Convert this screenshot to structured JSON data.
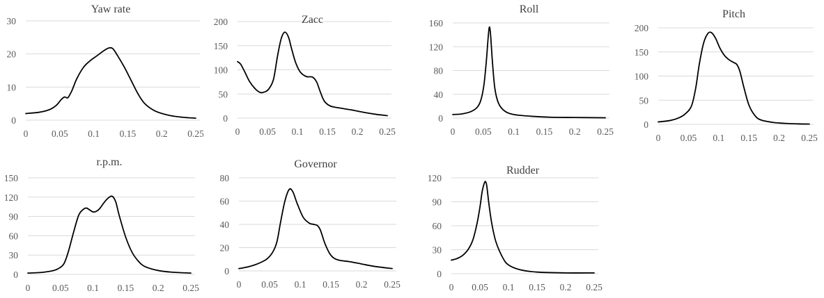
{
  "chart_data": [
    {
      "type": "line",
      "title": "Yaw rate",
      "xlim": [
        0,
        0.25
      ],
      "xticks": [
        "0",
        "0.05",
        "0.1",
        "0.15",
        "0.2",
        "0.25"
      ],
      "ylim": [
        0,
        30
      ],
      "yticks": [
        "0",
        "10",
        "20",
        "30"
      ],
      "grid": true,
      "series": [
        {
          "x": [
            0,
            0.02,
            0.035,
            0.045,
            0.052,
            0.057,
            0.062,
            0.068,
            0.075,
            0.085,
            0.095,
            0.105,
            0.115,
            0.122,
            0.128,
            0.135,
            0.145,
            0.155,
            0.165,
            0.175,
            0.19,
            0.21,
            0.23,
            0.25
          ],
          "y": [
            2,
            2.4,
            3.2,
            4.5,
            6.2,
            7,
            6.8,
            9,
            12.5,
            16,
            18,
            19.5,
            21,
            21.8,
            21.6,
            19.5,
            16,
            12,
            8,
            5,
            2.8,
            1.5,
            0.9,
            0.6
          ]
        }
      ]
    },
    {
      "type": "line",
      "title": "Zacc",
      "xlim": [
        0,
        0.25
      ],
      "xticks": [
        "0",
        "0.05",
        "0.1",
        "0.15",
        "0.2",
        "0.25"
      ],
      "ylim": [
        0,
        200
      ],
      "yticks": [
        "0",
        "50",
        "100",
        "150",
        "200"
      ],
      "grid": true,
      "series": [
        {
          "x": [
            0,
            0.005,
            0.012,
            0.02,
            0.03,
            0.038,
            0.045,
            0.052,
            0.06,
            0.067,
            0.073,
            0.079,
            0.085,
            0.09,
            0.097,
            0.105,
            0.115,
            0.125,
            0.132,
            0.138,
            0.145,
            0.155,
            0.17,
            0.19,
            0.21,
            0.23,
            0.25
          ],
          "y": [
            117,
            112,
            96,
            76,
            60,
            53,
            54,
            60,
            80,
            130,
            165,
            178,
            168,
            145,
            115,
            95,
            86,
            85,
            75,
            55,
            35,
            25,
            21,
            17,
            12,
            8,
            5
          ]
        }
      ]
    },
    {
      "type": "line",
      "title": "Roll",
      "xlim": [
        0,
        0.25
      ],
      "xticks": [
        "0",
        "0.05",
        "0.1",
        "0.15",
        "0.2",
        "0.25"
      ],
      "ylim": [
        0,
        160
      ],
      "yticks": [
        "0",
        "40",
        "80",
        "120",
        "160"
      ],
      "grid": true,
      "series": [
        {
          "x": [
            0,
            0.015,
            0.03,
            0.04,
            0.046,
            0.051,
            0.055,
            0.058,
            0.06,
            0.062,
            0.065,
            0.069,
            0.075,
            0.085,
            0.1,
            0.13,
            0.16,
            0.2,
            0.25
          ],
          "y": [
            6,
            7,
            11,
            18,
            30,
            55,
            95,
            135,
            153,
            140,
            95,
            50,
            25,
            12,
            6,
            3,
            1.5,
            1,
            0.5
          ]
        }
      ]
    },
    {
      "type": "line",
      "title": "Pitch",
      "xlim": [
        0,
        0.25
      ],
      "xticks": [
        "0",
        "0.05",
        "0.1",
        "0.15",
        "0.2",
        "0.25"
      ],
      "ylim": [
        0,
        200
      ],
      "yticks": [
        "0",
        "50",
        "100",
        "150",
        "200"
      ],
      "grid": true,
      "series": [
        {
          "x": [
            0,
            0.02,
            0.035,
            0.045,
            0.055,
            0.062,
            0.068,
            0.075,
            0.082,
            0.088,
            0.095,
            0.102,
            0.11,
            0.118,
            0.125,
            0.13,
            0.135,
            0.142,
            0.15,
            0.16,
            0.17,
            0.19,
            0.21,
            0.23,
            0.25
          ],
          "y": [
            5,
            8,
            14,
            22,
            38,
            75,
            125,
            168,
            188,
            190,
            178,
            158,
            142,
            133,
            128,
            124,
            110,
            75,
            40,
            18,
            9,
            4,
            2,
            1,
            0.5
          ]
        }
      ]
    },
    {
      "type": "line",
      "title": "r.p.m.",
      "xlim": [
        0,
        0.25
      ],
      "xticks": [
        "0",
        "0.05",
        "0.1",
        "0.15",
        "0.2",
        "0.25"
      ],
      "ylim": [
        0,
        150
      ],
      "yticks": [
        "0",
        "30",
        "60",
        "90",
        "120",
        "150"
      ],
      "grid": true,
      "series": [
        {
          "x": [
            0,
            0.02,
            0.035,
            0.045,
            0.055,
            0.062,
            0.07,
            0.078,
            0.085,
            0.09,
            0.095,
            0.1,
            0.105,
            0.11,
            0.118,
            0.125,
            0.13,
            0.135,
            0.14,
            0.15,
            0.16,
            0.17,
            0.18,
            0.2,
            0.22,
            0.25
          ],
          "y": [
            2,
            3,
            5,
            8,
            16,
            35,
            65,
            92,
            101,
            103,
            100,
            97,
            98,
            102,
            113,
            120,
            121,
            112,
            92,
            58,
            34,
            20,
            12,
            6,
            3.5,
            2
          ]
        }
      ]
    },
    {
      "type": "line",
      "title": "Governor",
      "xlim": [
        0,
        0.25
      ],
      "xticks": [
        "0",
        "0.05",
        "0.1",
        "0.15",
        "0.2",
        "0.25"
      ],
      "ylim": [
        0,
        80
      ],
      "yticks": [
        "0",
        "20",
        "40",
        "60",
        "80"
      ],
      "grid": true,
      "series": [
        {
          "x": [
            0,
            0.015,
            0.03,
            0.045,
            0.055,
            0.062,
            0.068,
            0.075,
            0.082,
            0.088,
            0.095,
            0.105,
            0.115,
            0.122,
            0.128,
            0.133,
            0.14,
            0.148,
            0.155,
            0.165,
            0.18,
            0.2,
            0.22,
            0.25
          ],
          "y": [
            2,
            3.5,
            6,
            10,
            16,
            25,
            42,
            60,
            70,
            68,
            58,
            46,
            41,
            40,
            39,
            35,
            24,
            15,
            11,
            9,
            8,
            6,
            4,
            2
          ]
        }
      ]
    },
    {
      "type": "line",
      "title": "Rudder",
      "xlim": [
        0,
        0.25
      ],
      "xticks": [
        "0",
        "0.05",
        "0.1",
        "0.15",
        "0.2",
        "0.25"
      ],
      "ylim": [
        0,
        120
      ],
      "yticks": [
        "0",
        "30",
        "60",
        "90",
        "120"
      ],
      "grid": true,
      "series": [
        {
          "x": [
            0,
            0.01,
            0.02,
            0.03,
            0.038,
            0.045,
            0.05,
            0.054,
            0.058,
            0.06,
            0.062,
            0.066,
            0.071,
            0.078,
            0.09,
            0.1,
            0.12,
            0.15,
            0.2,
            0.25
          ],
          "y": [
            17,
            19,
            23,
            31,
            43,
            63,
            83,
            103,
            114,
            115,
            110,
            86,
            62,
            40,
            20,
            11,
            5,
            2,
            1,
            1
          ]
        }
      ]
    }
  ]
}
